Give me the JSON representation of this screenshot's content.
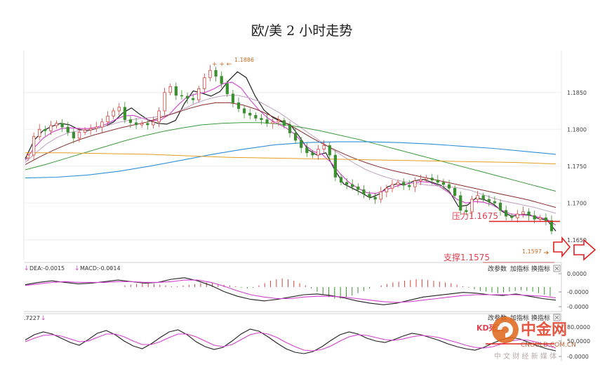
{
  "title": "欧/美 2 小时走势",
  "colors": {
    "up": "#d9413a",
    "down": "#3a8f2e",
    "ma_black": "#202020",
    "ma_magenta": "#d43fd0",
    "ma_pink": "#c0a0c0",
    "ma_maroon": "#8a2b2b",
    "ma_green": "#3b9a3b",
    "ma_blue": "#2f8fd8",
    "ma_orange": "#e0a020",
    "level_line": "#e02020",
    "annot_text": "#e04050",
    "macd_dea": "#d43fd0",
    "macd_line": "#202020"
  },
  "price_axis": {
    "ticks": [
      "1.1850",
      "1.1800",
      "1.1750",
      "1.1700",
      "1.1650"
    ]
  },
  "annotations": {
    "high_label": "1.1886",
    "low_label": "1.1597",
    "resistance_label": "压力1.1675",
    "support_label": "支撑1.1575"
  },
  "macd_panel": {
    "legend_dea": "DEA:-0.0015",
    "legend_macd": "MACD:-0.0014",
    "buttons": [
      "改参数",
      "加指标",
      "换指标"
    ],
    "ticks": [
      "0.0000",
      "-0.0000",
      "-0.0000"
    ]
  },
  "kdj_panel": {
    "legend": ".7227",
    "buttons": [
      "改参数",
      "加指标",
      "换指标"
    ],
    "ticks": [
      "80.0000",
      "50.0000",
      "-0.0000"
    ],
    "kd_label": "KD死叉"
  },
  "watermark": {
    "logo_text": "中金网",
    "url": "CNGOLD.COM.CN",
    "tagline": "中 文 财 经 新 媒 体"
  },
  "chart_data": {
    "type": "candlestick",
    "title": "欧/美 2 小时走势",
    "y_ticks": [
      1.185,
      1.18,
      1.175,
      1.17,
      1.165
    ],
    "ylim": [
      1.1625,
      1.1905
    ],
    "high_label_value": 1.1886,
    "low_label_value": 1.1597,
    "horizontal_levels": [
      1.1675,
      1.1575
    ],
    "close_path": [
      1.1765,
      1.179,
      1.18,
      1.1798,
      1.1805,
      1.1808,
      1.1803,
      1.1796,
      1.1788,
      1.1796,
      1.1799,
      1.1801,
      1.1803,
      1.181,
      1.1818,
      1.1825,
      1.183,
      1.1813,
      1.1809,
      1.1806,
      1.1808,
      1.1806,
      1.181,
      1.1825,
      1.185,
      1.1858,
      1.1846,
      1.1845,
      1.1842,
      1.184,
      1.1855,
      1.187,
      1.188,
      1.1872,
      1.1862,
      1.1848,
      1.1836,
      1.1828,
      1.1822,
      1.1819,
      1.1815,
      1.1813,
      1.1808,
      1.181,
      1.1812,
      1.1805,
      1.1795,
      1.1785,
      1.1775,
      1.1768,
      1.1765,
      1.1773,
      1.1778,
      1.1765,
      1.1735,
      1.1728,
      1.1725,
      1.1722,
      1.1718,
      1.1712,
      1.1708,
      1.1705,
      1.1715,
      1.172,
      1.1725,
      1.1728,
      1.1724,
      1.1722,
      1.173,
      1.1732,
      1.1734,
      1.1731,
      1.1728,
      1.1725,
      1.172,
      1.171,
      1.169,
      1.1688,
      1.1705,
      1.171,
      1.1705,
      1.1702,
      1.17,
      1.169,
      1.1682,
      1.168,
      1.1685,
      1.1688,
      1.1683,
      1.1678,
      1.168,
      1.1676,
      1.1662
    ],
    "moving_averages": [
      {
        "color_key": "ma_black",
        "values": [
          1.176,
          1.1785,
          1.1798,
          1.1804,
          1.1808,
          1.1806,
          1.18,
          1.1798,
          1.1801,
          1.1804,
          1.181,
          1.1822,
          1.1829,
          1.182,
          1.1812,
          1.1808,
          1.1807,
          1.1812,
          1.1835,
          1.1852,
          1.1849,
          1.1845,
          1.1851,
          1.1866,
          1.1878,
          1.187,
          1.1845,
          1.1826,
          1.1816,
          1.181,
          1.1806,
          1.179,
          1.1772,
          1.1765,
          1.1768,
          1.1745,
          1.1726,
          1.172,
          1.1714,
          1.1707,
          1.1712,
          1.1722,
          1.1726,
          1.1725,
          1.173,
          1.1732,
          1.1728,
          1.1724,
          1.1715,
          1.1695,
          1.1697,
          1.1707,
          1.1704,
          1.1698,
          1.1688,
          1.1682,
          1.1684,
          1.1684,
          1.1679,
          1.1677,
          1.1662
        ]
      },
      {
        "color_key": "ma_magenta",
        "values": [
          1.1758,
          1.1775,
          1.1788,
          1.1796,
          1.1801,
          1.1802,
          1.1801,
          1.1801,
          1.1803,
          1.1807,
          1.1813,
          1.1818,
          1.1819,
          1.1815,
          1.1812,
          1.1812,
          1.182,
          1.1833,
          1.1844,
          1.1848,
          1.185,
          1.1855,
          1.1862,
          1.1864,
          1.1856,
          1.184,
          1.1826,
          1.1815,
          1.1808,
          1.1802,
          1.1793,
          1.178,
          1.177,
          1.1766,
          1.1755,
          1.174,
          1.1728,
          1.172,
          1.1714,
          1.1713,
          1.1717,
          1.1722,
          1.1725,
          1.1727,
          1.1729,
          1.1728,
          1.1723,
          1.1715,
          1.1705,
          1.17,
          1.1702,
          1.1701,
          1.1697,
          1.169,
          1.1685,
          1.1684,
          1.1683,
          1.1681,
          1.1678,
          1.167
        ]
      },
      {
        "color_key": "ma_pink",
        "values": [
          1.1755,
          1.1768,
          1.178,
          1.1789,
          1.1795,
          1.1798,
          1.18,
          1.1802,
          1.1806,
          1.181,
          1.1813,
          1.1815,
          1.1816,
          1.1818,
          1.1822,
          1.1828,
          1.1835,
          1.184,
          1.1844,
          1.1846,
          1.1846,
          1.1843,
          1.1838,
          1.183,
          1.1822,
          1.1812,
          1.1802,
          1.1792,
          1.1782,
          1.1772,
          1.1763,
          1.1754,
          1.1746,
          1.174,
          1.1735,
          1.1731,
          1.1728,
          1.1726,
          1.1724,
          1.1723,
          1.1722,
          1.172,
          1.1717,
          1.1712,
          1.1707,
          1.1703,
          1.17,
          1.1697,
          1.1694,
          1.169,
          1.1686
        ]
      },
      {
        "color_key": "ma_maroon",
        "values": [
          1.1752,
          1.1762,
          1.1771,
          1.1779,
          1.1786,
          1.1792,
          1.1797,
          1.1802,
          1.1806,
          1.181,
          1.1816,
          1.1822,
          1.1828,
          1.1833,
          1.1836,
          1.1836,
          1.1833,
          1.1827,
          1.1819,
          1.181,
          1.18,
          1.1789,
          1.1779,
          1.177,
          1.1762,
          1.1755,
          1.1749,
          1.1744,
          1.174,
          1.1736,
          1.1732,
          1.1728,
          1.1724,
          1.172,
          1.1716,
          1.1712,
          1.1708,
          1.1704,
          1.1699,
          1.1694
        ]
      },
      {
        "color_key": "ma_green",
        "values": [
          1.1745,
          1.1752,
          1.176,
          1.1768,
          1.1776,
          1.1784,
          1.1791,
          1.1797,
          1.1802,
          1.1806,
          1.1808,
          1.1809,
          1.1809,
          1.1807,
          1.1803,
          1.1798,
          1.1792,
          1.1786,
          1.1779,
          1.1772,
          1.1765,
          1.1758,
          1.1751,
          1.1744,
          1.1737,
          1.173,
          1.1723,
          1.1716
        ]
      },
      {
        "color_key": "ma_blue",
        "values": [
          1.1734,
          1.1735,
          1.1738,
          1.1743,
          1.175,
          1.1758,
          1.1766,
          1.1773,
          1.1779,
          1.1782,
          1.1783,
          1.1783,
          1.1782,
          1.178,
          1.1777,
          1.1774,
          1.177,
          1.1766
        ]
      },
      {
        "color_key": "ma_orange",
        "values": [
          1.1768,
          1.1768,
          1.1767,
          1.1766,
          1.1764,
          1.1762,
          1.1761,
          1.176,
          1.1759,
          1.1758,
          1.1757,
          1.1756,
          1.1755,
          1.1753
        ]
      }
    ],
    "macd_bars": [
      0.2,
      0.3,
      0.4,
      0.5,
      0.5,
      0.4,
      0.3,
      0.2,
      0.1,
      0.1,
      0.2,
      0.3,
      0.4,
      0.5,
      0.6,
      0.5,
      0.4,
      0.3,
      0.2,
      0.1,
      -0.1,
      -0.2,
      -0.1,
      0.2,
      0.5,
      0.8,
      1.0,
      1.1,
      1.0,
      0.8,
      0.5,
      0.2,
      -0.2,
      -0.6,
      -1.0,
      -1.3,
      -1.5,
      -1.5,
      -1.3,
      -1.1,
      -0.8,
      -0.5,
      -0.2,
      0.0,
      0.2,
      0.4,
      0.6,
      0.7,
      0.8,
      0.9,
      1.0,
      1.0,
      0.9,
      0.8,
      0.7,
      0.6,
      0.5,
      0.3,
      0.1,
      -0.1,
      -0.3,
      -0.5,
      -0.6,
      -0.7,
      -0.8,
      -0.7,
      -0.6,
      -0.5,
      -0.4,
      -0.5,
      -0.6,
      -0.8,
      -1.0,
      -1.2
    ],
    "macd_dif": [
      0.3,
      0.6,
      0.8,
      0.6,
      0.4,
      0.5,
      0.7,
      0.9,
      0.7,
      0.5,
      0.6,
      1.0,
      1.2,
      0.8,
      0.2,
      -0.6,
      -1.2,
      -1.6,
      -1.8,
      -1.6,
      -1.3,
      -1.0,
      -0.9,
      -1.1,
      -1.4,
      -1.8,
      -2.1,
      -2.3,
      -2.1,
      -1.7,
      -1.3,
      -1.1,
      -0.9,
      -0.7,
      -0.8,
      -1.0,
      -1.1,
      -0.9,
      -1.2,
      -1.5,
      -1.7
    ],
    "macd_dea_line": [
      0.2,
      0.4,
      0.6,
      0.7,
      0.6,
      0.6,
      0.6,
      0.7,
      0.7,
      0.6,
      0.6,
      0.7,
      0.9,
      0.9,
      0.6,
      0.1,
      -0.5,
      -1.0,
      -1.3,
      -1.5,
      -1.5,
      -1.3,
      -1.2,
      -1.2,
      -1.3,
      -1.5,
      -1.7,
      -1.9,
      -2.0,
      -1.9,
      -1.7,
      -1.5,
      -1.3,
      -1.1,
      -1.0,
      -1.0,
      -1.0,
      -1.0,
      -1.1,
      -1.2,
      -1.4
    ],
    "kdj_k": [
      55,
      70,
      78,
      72,
      60,
      48,
      40,
      56,
      74,
      82,
      70,
      52,
      38,
      30,
      44,
      62,
      78,
      84,
      70,
      50,
      36,
      28,
      34,
      52,
      72,
      86,
      80,
      64,
      46,
      30,
      20,
      16,
      22,
      36,
      54,
      70,
      78,
      72,
      60,
      52,
      48,
      56,
      66,
      74,
      70,
      62,
      54,
      44,
      36,
      30,
      26,
      34,
      46,
      56,
      62,
      58,
      48,
      38,
      30,
      24
    ],
    "kdj_d": [
      50,
      60,
      68,
      70,
      66,
      58,
      50,
      52,
      62,
      72,
      72,
      64,
      52,
      42,
      42,
      50,
      62,
      72,
      72,
      64,
      52,
      40,
      36,
      42,
      56,
      70,
      76,
      72,
      62,
      48,
      36,
      26,
      24,
      28,
      38,
      52,
      64,
      70,
      68,
      62,
      56,
      54,
      58,
      64,
      68,
      66,
      62,
      55,
      48,
      40,
      34,
      32,
      36,
      44,
      52,
      56,
      54,
      48,
      40,
      32
    ]
  }
}
